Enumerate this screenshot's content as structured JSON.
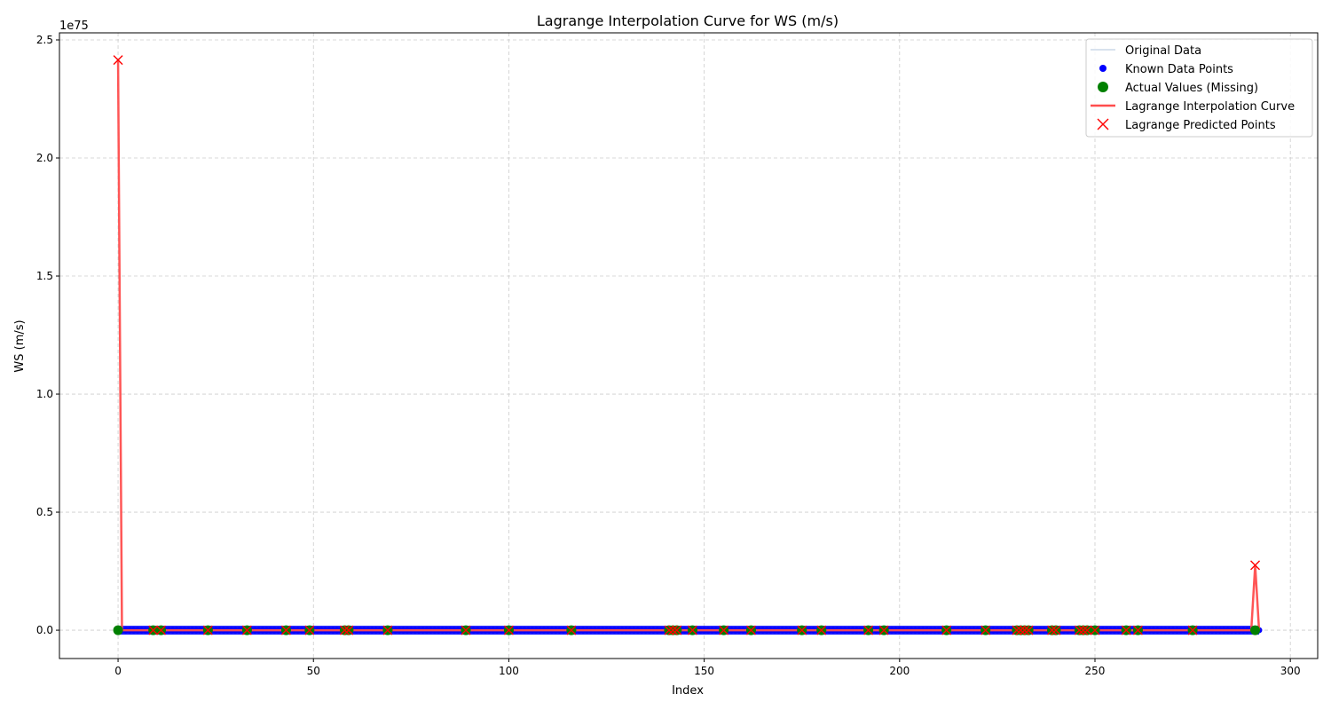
{
  "chart_data": {
    "type": "line",
    "title": "Lagrange Interpolation Curve for WS (m/s)",
    "xlabel": "Index",
    "ylabel": "WS (m/s)",
    "y_offset_text": "1e75",
    "xlim": [
      -15,
      307
    ],
    "ylim": [
      -0.12,
      2.53
    ],
    "y_unit_multiplier": "1e75",
    "xticks": [
      0,
      50,
      100,
      150,
      200,
      250,
      300
    ],
    "yticks": [
      0.0,
      0.5,
      1.0,
      1.5,
      2.0,
      2.5
    ],
    "ytick_labels": [
      "0.0",
      "0.5",
      "1.0",
      "1.5",
      "2.0",
      "2.5"
    ],
    "grid": true,
    "legend_position": "top-right",
    "legend": [
      {
        "label": "Original Data",
        "marker": "line",
        "color": "#b0c4de"
      },
      {
        "label": "Known Data Points",
        "marker": "dot",
        "color": "#0000ff"
      },
      {
        "label": "Actual Values (Missing)",
        "marker": "big-dot",
        "color": "#008000"
      },
      {
        "label": "Lagrange Interpolation Curve",
        "marker": "line",
        "color": "#ff4d4d"
      },
      {
        "label": "Lagrange Predicted Points",
        "marker": "x",
        "color": "#ff0000"
      }
    ],
    "series": [
      {
        "name": "Original Data",
        "x_range": [
          0,
          292
        ],
        "values_constant": 0
      },
      {
        "name": "Known Data Points",
        "x_range": [
          0,
          292
        ],
        "values_constant": 0
      },
      {
        "name": "Actual Values (Missing)",
        "x": [
          0,
          9,
          11,
          23,
          33,
          43,
          49,
          58,
          59,
          69,
          89,
          100,
          116,
          141,
          142,
          143,
          147,
          155,
          162,
          175,
          180,
          192,
          196,
          212,
          222,
          230,
          231,
          232,
          233,
          239,
          240,
          246,
          247,
          248,
          250,
          258,
          261,
          275,
          291
        ],
        "values_constant": 0
      },
      {
        "name": "Lagrange Interpolation Curve",
        "x": [
          0,
          1,
          290,
          291,
          292
        ],
        "values": [
          2.415,
          0,
          0,
          0.275,
          0
        ]
      },
      {
        "name": "Lagrange Predicted Points",
        "x": [
          0,
          9,
          11,
          23,
          33,
          43,
          49,
          58,
          59,
          69,
          89,
          100,
          116,
          141,
          142,
          143,
          147,
          155,
          162,
          175,
          180,
          192,
          196,
          212,
          222,
          230,
          231,
          232,
          233,
          239,
          240,
          246,
          247,
          248,
          250,
          258,
          261,
          275,
          291
        ],
        "values": [
          2.415,
          0,
          0,
          0,
          0,
          0,
          0,
          0,
          0,
          0,
          0,
          0,
          0,
          0,
          0,
          0,
          0,
          0,
          0,
          0,
          0,
          0,
          0,
          0,
          0,
          0,
          0,
          0,
          0,
          0,
          0,
          0,
          0,
          0,
          0,
          0,
          0,
          0,
          0.275
        ]
      }
    ]
  }
}
